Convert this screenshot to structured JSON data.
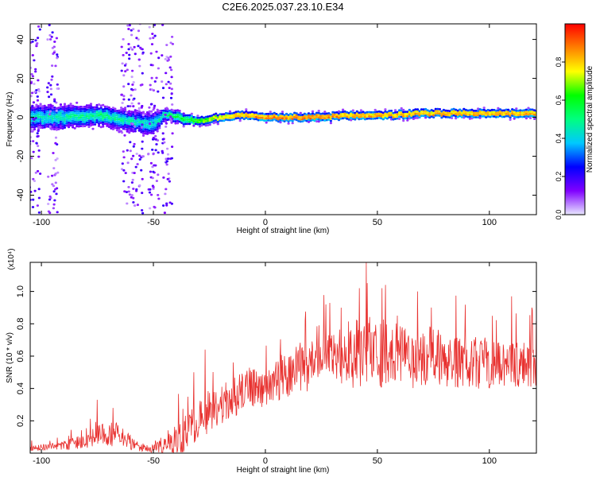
{
  "title": "C2E6.2025.037.23.10.E34",
  "colors": {
    "snr_line": "#e8312f",
    "axis": "#000000",
    "background": "#ffffff"
  },
  "chart_data": [
    {
      "type": "heatmap",
      "xlabel": "Height of straight line (km)",
      "ylabel": "Frequency (Hz)",
      "xlim": [
        -105,
        121
      ],
      "ylim": [
        -50,
        48
      ],
      "x_ticks": [
        -100,
        -50,
        0,
        50,
        100
      ],
      "y_ticks": [
        -40,
        -20,
        0,
        20,
        40
      ],
      "grid": false,
      "colorbar": {
        "label": "Normalized spectral amplitude",
        "range": [
          0,
          1
        ],
        "ticks": [
          0.0,
          0.2,
          0.4,
          0.6,
          0.8
        ],
        "colormap": [
          "#e8e8ff",
          "#8000ff",
          "#0000ff",
          "#00c8ff",
          "#00ff80",
          "#00ff00",
          "#ffff00",
          "#ff8000",
          "#ff0000"
        ]
      },
      "band": {
        "x": [
          -105,
          -90,
          -75,
          -60,
          -50,
          -45,
          -40,
          -35,
          -30,
          -20,
          -10,
          0,
          10,
          25,
          40,
          55,
          70,
          85,
          100,
          121
        ],
        "center": [
          0,
          0,
          1,
          -2,
          -4,
          2,
          0,
          -1,
          -2,
          0,
          1,
          0,
          0,
          0,
          1,
          1,
          2,
          2,
          2,
          2
        ],
        "width": [
          6,
          6,
          5,
          5,
          6,
          3,
          3,
          3,
          2,
          2,
          2,
          2,
          2,
          2,
          2,
          2,
          2,
          2,
          2,
          2
        ],
        "peak": [
          0.45,
          0.45,
          0.5,
          0.45,
          0.4,
          0.5,
          0.55,
          0.6,
          0.7,
          0.85,
          0.9,
          0.95,
          0.95,
          0.95,
          0.9,
          0.9,
          0.9,
          0.9,
          0.9,
          0.9
        ]
      },
      "noise_columns_x": [
        -103,
        -95,
        -62,
        -57,
        -50,
        -44
      ]
    },
    {
      "type": "line",
      "xlabel": "Height of straight line (km)",
      "ylabel": "SNR (10 * v/v)",
      "y_multiplier": "(x10⁴)",
      "xlim": [
        -105,
        121
      ],
      "ylim": [
        0,
        1.18
      ],
      "x_ticks": [
        -100,
        -50,
        0,
        50,
        100
      ],
      "y_ticks": [
        0.2,
        0.4,
        0.6,
        0.8,
        1.0
      ],
      "grid": false,
      "series": [
        {
          "x": [
            -105,
            -95,
            -85,
            -80,
            -75,
            -70,
            -65,
            -60,
            -55,
            -50,
            -45,
            -40,
            -35,
            -30,
            -25,
            -20,
            -15,
            -10,
            -5,
            0,
            5,
            10,
            15,
            20,
            25,
            30,
            35,
            40,
            45,
            50,
            55,
            60,
            65,
            70,
            75,
            80,
            85,
            90,
            95,
            100,
            105,
            110,
            115,
            121
          ],
          "mean": [
            0.03,
            0.04,
            0.06,
            0.07,
            0.1,
            0.12,
            0.12,
            0.06,
            0.03,
            0.03,
            0.04,
            0.06,
            0.15,
            0.2,
            0.25,
            0.3,
            0.35,
            0.38,
            0.4,
            0.4,
            0.45,
            0.48,
            0.52,
            0.55,
            0.57,
            0.6,
            0.6,
            0.62,
            0.63,
            0.62,
            0.62,
            0.6,
            0.6,
            0.6,
            0.6,
            0.57,
            0.57,
            0.55,
            0.55,
            0.55,
            0.55,
            0.55,
            0.55,
            0.55
          ],
          "spread": [
            0.02,
            0.02,
            0.04,
            0.05,
            0.07,
            0.08,
            0.07,
            0.04,
            0.02,
            0.03,
            0.05,
            0.12,
            0.14,
            0.14,
            0.14,
            0.13,
            0.13,
            0.13,
            0.12,
            0.12,
            0.14,
            0.15,
            0.16,
            0.17,
            0.17,
            0.18,
            0.2,
            0.22,
            0.22,
            0.22,
            0.2,
            0.2,
            0.2,
            0.2,
            0.18,
            0.17,
            0.17,
            0.16,
            0.16,
            0.15,
            0.15,
            0.15,
            0.15,
            0.15
          ],
          "peaks": [
            {
              "x": -75,
              "y": 0.33
            },
            {
              "x": -68,
              "y": 0.28
            },
            {
              "x": -32,
              "y": 0.5
            },
            {
              "x": -27,
              "y": 0.64
            },
            {
              "x": 27,
              "y": 0.92
            },
            {
              "x": 45,
              "y": 1.18
            },
            {
              "x": 42,
              "y": 1.02
            },
            {
              "x": 52,
              "y": 1.02
            },
            {
              "x": 68,
              "y": 1.0
            },
            {
              "x": 110,
              "y": 0.97
            },
            {
              "x": 119,
              "y": 0.9
            }
          ]
        }
      ]
    }
  ]
}
